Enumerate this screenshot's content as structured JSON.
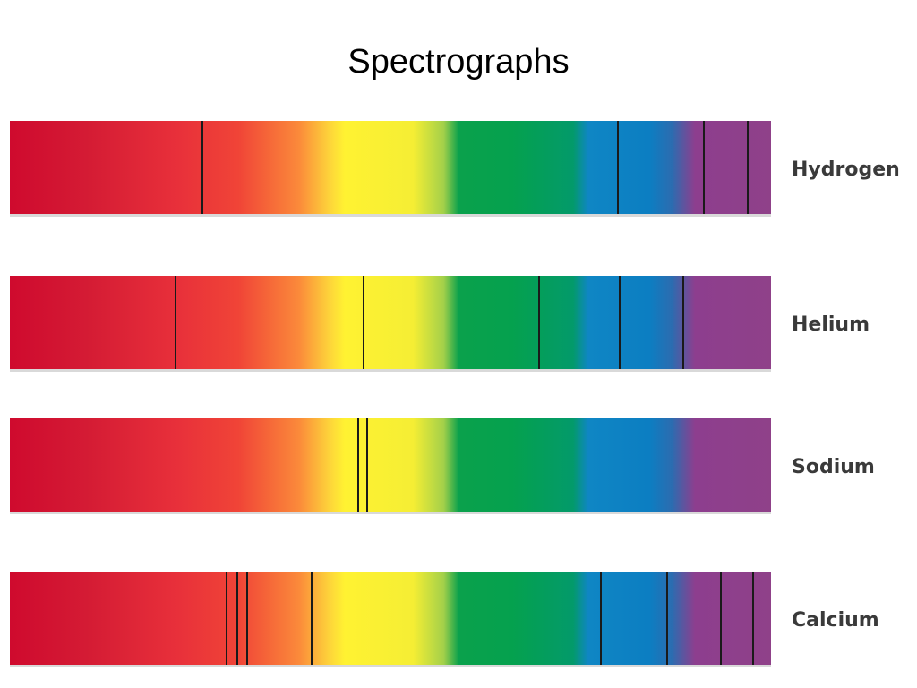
{
  "title": "Spectrographs",
  "spectra": [
    {
      "element": "Hydrogen",
      "absorption_lines": [
        0.252,
        0.798,
        0.91,
        0.968
      ]
    },
    {
      "element": "Helium",
      "absorption_lines": [
        0.217,
        0.464,
        0.694,
        0.8,
        0.883
      ]
    },
    {
      "element": "Sodium",
      "absorption_lines": [
        0.456,
        0.468
      ]
    },
    {
      "element": "Calcium",
      "absorption_lines": [
        0.283,
        0.298,
        0.31,
        0.395,
        0.775,
        0.862,
        0.933,
        0.975
      ]
    }
  ],
  "colors": {
    "line": "#1a1a1a",
    "spectrum_start": "#cf0a2e",
    "spectrum_end": "#8f4189"
  }
}
